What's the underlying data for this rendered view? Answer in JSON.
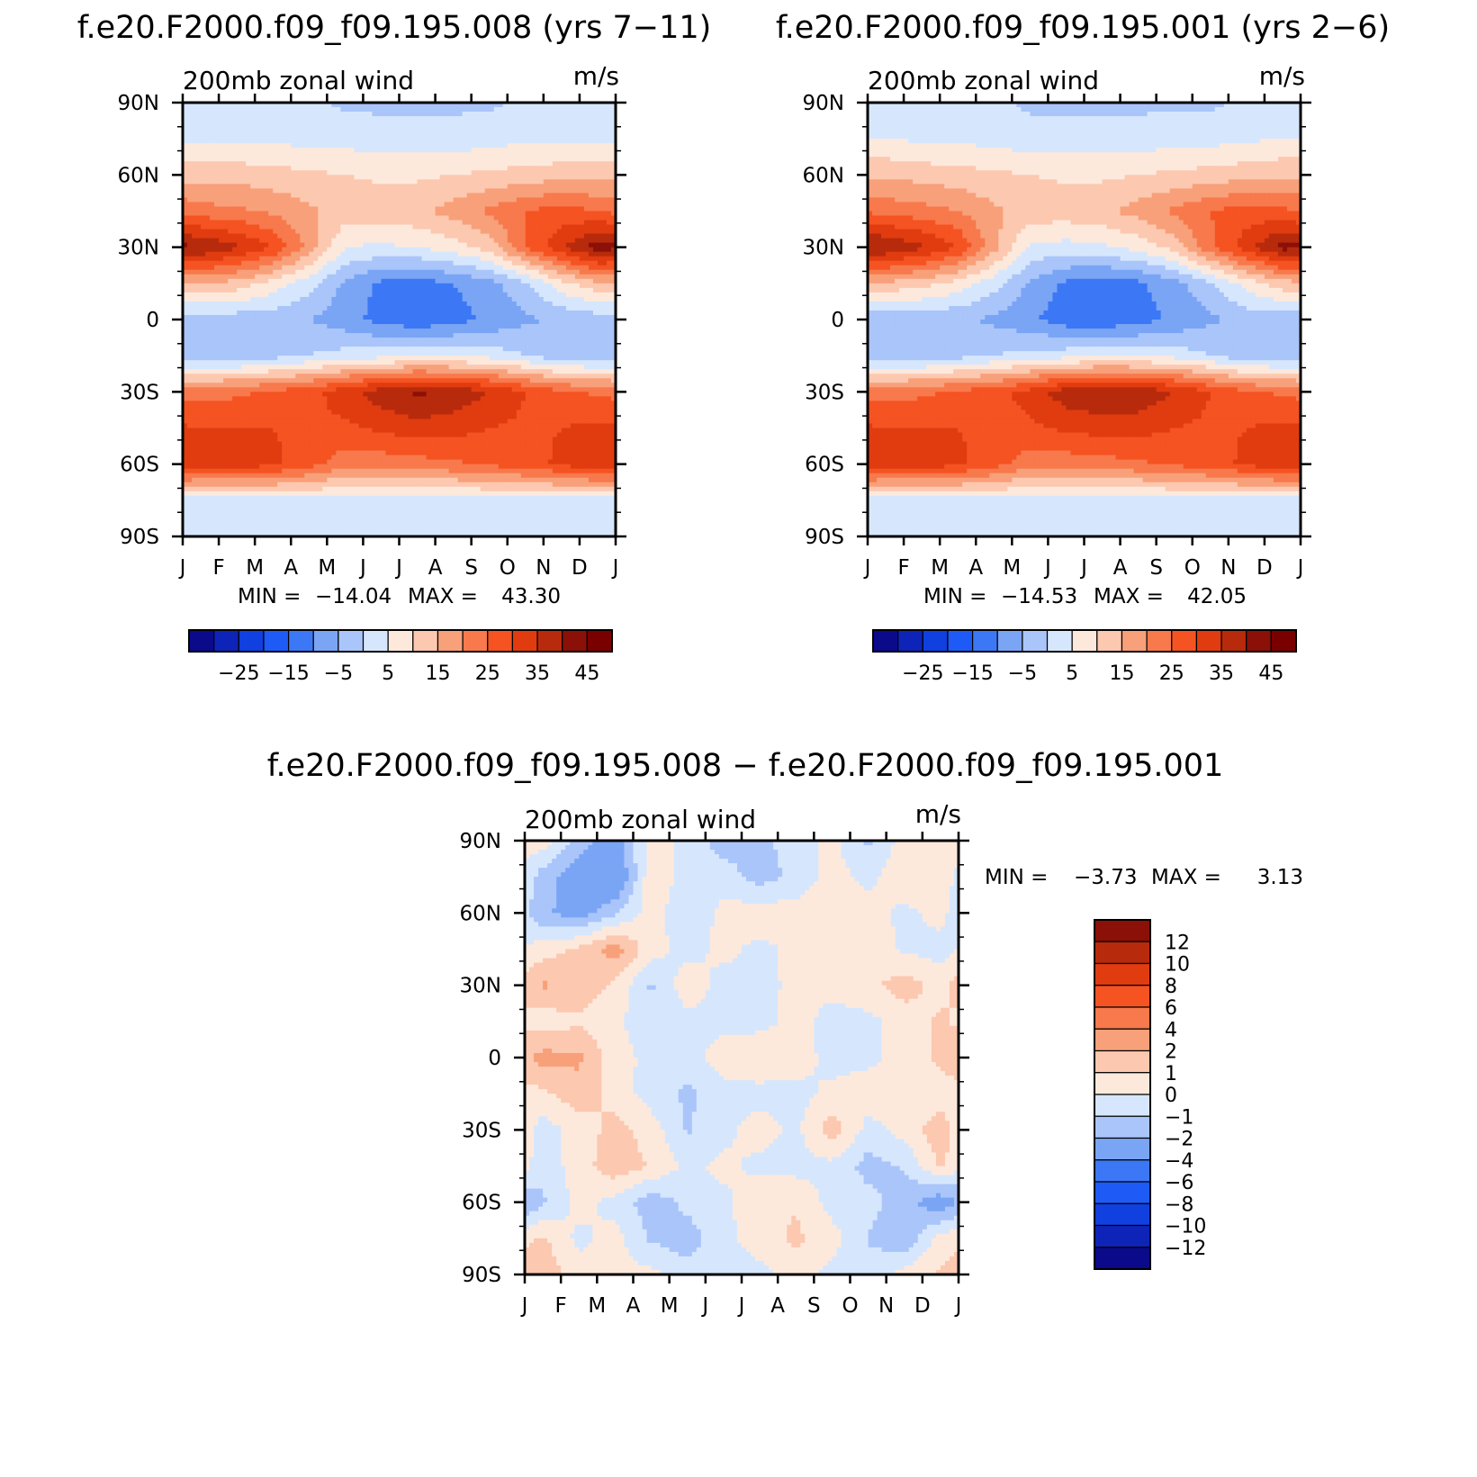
{
  "figure_titles": {
    "top_left": "f.e20.F2000.f09_f09.195.008 (yrs 7−11)",
    "top_right": "f.e20.F2000.f09_f09.195.001 (yrs 2−6)",
    "bottom": "f.e20.F2000.f09_f09.195.008 − f.e20.F2000.f09_f09.195.001"
  },
  "chart_data": [
    {
      "type": "heatmap",
      "id": "panel-008",
      "title": "200mb zonal wind",
      "units": "m/s",
      "x_ticks": [
        "J",
        "F",
        "M",
        "A",
        "M",
        "J",
        "J",
        "A",
        "S",
        "O",
        "N",
        "D",
        "J"
      ],
      "y_ticks": [
        "90N",
        "60N",
        "30N",
        "0",
        "30S",
        "60S",
        "90S"
      ],
      "ylim": [
        -90,
        90
      ],
      "x_months": [
        0.5,
        1.5,
        2.5,
        3.5,
        4.5,
        5.5,
        6.5,
        7.5,
        8.5,
        9.5,
        10.5,
        11.5
      ],
      "y_lats": [
        90,
        75,
        60,
        45,
        30,
        15,
        0,
        -15,
        -30,
        -45,
        -60,
        -75,
        -90
      ],
      "values": [
        [
          1,
          1,
          1,
          1,
          -1,
          -1,
          -1,
          -1,
          -1,
          1,
          1,
          1
        ],
        [
          4,
          4,
          4,
          3,
          3,
          2,
          2,
          2,
          3,
          4,
          4,
          4
        ],
        [
          13,
          13,
          12,
          11,
          10,
          9,
          9,
          10,
          11,
          12,
          13,
          13
        ],
        [
          22,
          21,
          19,
          16,
          13,
          13,
          14,
          17,
          21,
          25,
          27,
          25
        ],
        [
          40,
          36,
          30,
          18,
          5,
          4,
          5,
          8,
          12,
          25,
          34,
          43
        ],
        [
          15,
          13,
          8,
          2,
          -6,
          -11,
          -12,
          -10,
          -7,
          -1,
          8,
          14
        ],
        [
          -3,
          -3,
          -3,
          -5,
          -8,
          -12,
          -14,
          -12,
          -9,
          -6,
          -4,
          -3
        ],
        [
          -4,
          -4,
          -2,
          0,
          2,
          3,
          4,
          4,
          3,
          0,
          -4,
          -4
        ],
        [
          23,
          24,
          26,
          28,
          33,
          38,
          41,
          39,
          35,
          30,
          26,
          24
        ],
        [
          30,
          30,
          30,
          29,
          29,
          31,
          33,
          32,
          30,
          29,
          30,
          31
        ],
        [
          33,
          33,
          31,
          27,
          22,
          22,
          23,
          24,
          26,
          28,
          31,
          34
        ],
        [
          3,
          3,
          3,
          3,
          3,
          3,
          3,
          3,
          3,
          3,
          3,
          3
        ],
        [
          2,
          2,
          2,
          1,
          1,
          1,
          1,
          1,
          1,
          2,
          2,
          2
        ]
      ],
      "stats": {
        "min_label": "MIN =",
        "min": "−14.04",
        "max_label": "MAX =",
        "max": "43.30"
      }
    },
    {
      "type": "heatmap",
      "id": "panel-001",
      "title": "200mb zonal wind",
      "units": "m/s",
      "x_ticks": [
        "J",
        "F",
        "M",
        "A",
        "M",
        "J",
        "J",
        "A",
        "S",
        "O",
        "N",
        "D",
        "J"
      ],
      "y_ticks": [
        "90N",
        "60N",
        "30N",
        "0",
        "30S",
        "60S",
        "90S"
      ],
      "ylim": [
        -90,
        90
      ],
      "x_months": [
        0.5,
        1.5,
        2.5,
        3.5,
        4.5,
        5.5,
        6.5,
        7.5,
        8.5,
        9.5,
        10.5,
        11.5
      ],
      "y_lats": [
        90,
        75,
        60,
        45,
        30,
        15,
        0,
        -15,
        -30,
        -45,
        -60,
        -75,
        -90
      ],
      "values": [
        [
          1,
          1,
          1,
          1,
          -1,
          -1,
          -1,
          -1,
          -1,
          -1,
          1,
          1
        ],
        [
          5,
          4,
          4,
          3,
          2,
          2,
          2,
          2,
          3,
          3,
          4,
          5
        ],
        [
          14,
          13,
          12,
          11,
          10,
          9,
          9,
          10,
          11,
          12,
          13,
          14
        ],
        [
          23,
          22,
          20,
          16,
          13,
          13,
          14,
          17,
          21,
          25,
          27,
          26
        ],
        [
          40,
          36,
          30,
          17,
          4,
          3,
          4,
          7,
          12,
          24,
          33,
          42
        ],
        [
          14,
          12,
          8,
          2,
          -6,
          -11,
          -13,
          -11,
          -7,
          -1,
          7,
          13
        ],
        [
          -4,
          -4,
          -4,
          -6,
          -9,
          -13,
          -14,
          -12,
          -9,
          -6,
          -3,
          -3
        ],
        [
          -4,
          -4,
          -2,
          0,
          2,
          3,
          4,
          4,
          3,
          0,
          -4,
          -4
        ],
        [
          23,
          24,
          26,
          28,
          32,
          38,
          40,
          39,
          35,
          30,
          26,
          24
        ],
        [
          30,
          30,
          30,
          29,
          29,
          31,
          32,
          32,
          30,
          29,
          30,
          31
        ],
        [
          33,
          33,
          31,
          27,
          22,
          22,
          23,
          24,
          26,
          28,
          31,
          34
        ],
        [
          3,
          3,
          3,
          3,
          3,
          3,
          3,
          3,
          3,
          3,
          3,
          3
        ],
        [
          2,
          2,
          2,
          1,
          1,
          1,
          1,
          1,
          1,
          2,
          2,
          2
        ]
      ],
      "stats": {
        "min_label": "MIN =",
        "min": "−14.53",
        "max_label": "MAX =",
        "max": "42.05"
      }
    },
    {
      "type": "heatmap",
      "id": "panel-diff",
      "title": "200mb zonal wind",
      "units": "m/s",
      "x_ticks": [
        "J",
        "F",
        "M",
        "A",
        "M",
        "J",
        "J",
        "A",
        "S",
        "O",
        "N",
        "D",
        "J"
      ],
      "y_ticks": [
        "90N",
        "60N",
        "30N",
        "0",
        "30S",
        "60S",
        "90S"
      ],
      "ylim": [
        -90,
        90
      ],
      "x_months": [
        0.5,
        1.5,
        2.5,
        3.5,
        4.5,
        5.5,
        6.5,
        7.5,
        8.5,
        9.5,
        10.5,
        11.5
      ],
      "y_lats": [
        90,
        75,
        60,
        45,
        30,
        15,
        0,
        -15,
        -30,
        -45,
        -60,
        -75,
        -90
      ],
      "values": [
        [
          0.5,
          -1.5,
          -2.5,
          0.4,
          -0.3,
          -1.5,
          -1.2,
          -0.6,
          0.3,
          -1.2,
          0.4,
          0.8
        ],
        [
          -1.5,
          -2.8,
          -3.5,
          0.8,
          -0.5,
          -0.5,
          -1.5,
          -0.7,
          0.4,
          -0.3,
          0.8,
          0.8
        ],
        [
          -1.8,
          -2.5,
          -1.2,
          0.5,
          -0.8,
          0.3,
          0.6,
          0.4,
          0.8,
          0.5,
          -0.3,
          0.4
        ],
        [
          0.5,
          1.2,
          2.5,
          0.4,
          -0.4,
          0.3,
          -0.3,
          0.3,
          0.3,
          0.7,
          -0.2,
          -0.4
        ],
        [
          2.2,
          1.6,
          0.8,
          -1.2,
          0.6,
          -0.4,
          -0.4,
          0.3,
          0.3,
          0.7,
          1.5,
          0.6
        ],
        [
          0.4,
          0.8,
          0.2,
          -0.6,
          -0.3,
          -0.4,
          -0.4,
          0.4,
          -0.4,
          -0.3,
          0.4,
          1.2
        ],
        [
          2.4,
          2.2,
          0.4,
          -0.3,
          -0.5,
          0.6,
          0.9,
          0.4,
          -0.3,
          -0.3,
          0.4,
          1.2
        ],
        [
          0.8,
          1.6,
          0.6,
          -0.5,
          -1.2,
          -0.4,
          -0.4,
          -0.3,
          0.2,
          0.6,
          0.4,
          0.4
        ],
        [
          -0.5,
          0.4,
          1.4,
          0.5,
          -1.1,
          -0.3,
          0.5,
          -0.3,
          1.6,
          -0.4,
          0.4,
          1.6
        ],
        [
          -0.6,
          0.5,
          1.7,
          0.9,
          -0.3,
          0.3,
          -0.3,
          -0.4,
          -0.3,
          -1.4,
          -0.9,
          1.2
        ],
        [
          -1.2,
          0.4,
          -0.4,
          -1.6,
          -0.7,
          -0.3,
          0.8,
          0.9,
          -0.4,
          -0.6,
          -1.6,
          -2.8
        ],
        [
          1.2,
          -0.3,
          0.4,
          -1.2,
          -1.5,
          -0.3,
          0.5,
          1.2,
          0.4,
          -1.1,
          -1.8,
          0.4
        ],
        [
          1.6,
          0.5,
          0.3,
          0.3,
          -0.6,
          -0.4,
          -0.3,
          0.4,
          -0.3,
          -0.6,
          0.4,
          1.2
        ]
      ],
      "stats": {
        "min_label": "MIN =",
        "min": "−3.73",
        "max_label": "MAX =",
        "max": "3.13"
      }
    }
  ],
  "colorbar_top": {
    "levels": [
      -30,
      -25,
      -20,
      -15,
      -10,
      -5,
      0,
      5,
      10,
      15,
      20,
      25,
      30,
      35,
      40,
      45
    ],
    "labels": [
      "−25",
      "−15",
      "−5",
      "5",
      "15",
      "25",
      "35",
      "45"
    ],
    "colors": [
      "#0a0a8a",
      "#0e24b8",
      "#1040e0",
      "#1e5af5",
      "#3c78f5",
      "#7aa5f5",
      "#aac5fa",
      "#d6e7fd",
      "#fde9dc",
      "#fcc8b0",
      "#f8a07a",
      "#f7794c",
      "#f55322",
      "#e03c10",
      "#b82a0c",
      "#8a1008",
      "#7a0000"
    ]
  },
  "colorbar_diff": {
    "levels": [
      -12,
      -10,
      -8,
      -6,
      -4,
      -2,
      -1,
      0,
      1,
      2,
      4,
      6,
      8,
      10,
      12
    ],
    "labels": [
      "12",
      "10",
      "8",
      "6",
      "4",
      "2",
      "1",
      "0",
      "−1",
      "−2",
      "−4",
      "−6",
      "−8",
      "−10",
      "−12"
    ],
    "colors": [
      "#0a0a8a",
      "#0e24b8",
      "#1040e0",
      "#1e5af5",
      "#3c78f5",
      "#7aa5f5",
      "#aac5fa",
      "#d6e7fd",
      "#fde9dc",
      "#fcc8b0",
      "#f8a07a",
      "#f7794c",
      "#f55322",
      "#e03c10",
      "#b82a0c",
      "#8a1008"
    ]
  }
}
